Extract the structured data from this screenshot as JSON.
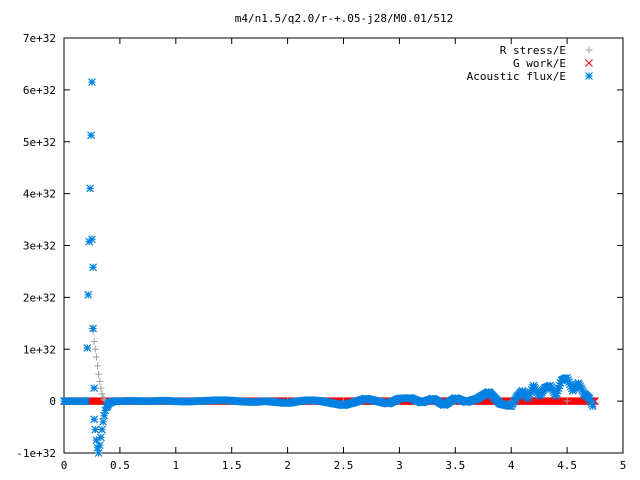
{
  "chart_data": {
    "type": "scatter",
    "title": "m4/n1.5/q2.0/r-+.05-j28/M0.01/512",
    "xlabel": "",
    "ylabel": "",
    "xlim": [
      0,
      5
    ],
    "ylim": [
      -1e+32,
      7e+32
    ],
    "x_ticks": [
      0,
      0.5,
      1,
      1.5,
      2,
      2.5,
      3,
      3.5,
      4,
      4.5,
      5
    ],
    "x_tick_labels": [
      "0",
      "0.5",
      "1",
      "1.5",
      "2",
      "2.5",
      "3",
      "3.5",
      "4",
      "4.5",
      "5"
    ],
    "y_ticks": [
      -1e+32,
      0,
      1e+32,
      2e+32,
      3e+32,
      4e+32,
      5e+32,
      6e+32,
      7e+32
    ],
    "y_tick_labels": [
      "-1e+32",
      "0",
      "1e+32",
      "2e+32",
      "3e+32",
      "4e+32",
      "5e+32",
      "6e+32",
      "7e+32"
    ],
    "grid": false,
    "legend_position": "top-right",
    "colors": {
      "r_stress": "#a0a0a0",
      "g_work": "#ff0000",
      "acoustic_flux": "#0080e0"
    },
    "series": [
      {
        "name": "R stress/E",
        "marker": "plus",
        "x": [
          0.25,
          0.26,
          0.27,
          0.28,
          0.29,
          0.3,
          0.31,
          0.32,
          0.33,
          0.34,
          0.35,
          0.36,
          0.37,
          0.4,
          0.45,
          0.5,
          0.6,
          0.8,
          1.0,
          1.5,
          2.0,
          2.5,
          3.0,
          3.5,
          4.0,
          4.5,
          4.72
        ],
        "y": [
          1.4e+32,
          1.35e+32,
          1.15e+32,
          1e+32,
          8.5e+31,
          6.8e+31,
          5.2e+31,
          3.8e+31,
          2.5e+31,
          1.4e+31,
          7e+30,
          3e+30,
          1e+30,
          0.0,
          0.0,
          0.0,
          0.0,
          0.0,
          0.0,
          0.0,
          0.0,
          0.0,
          0.0,
          0.0,
          0.0,
          0.0,
          0.0
        ]
      },
      {
        "name": "G work/E",
        "marker": "cross",
        "x_range": [
          0.0,
          4.75
        ],
        "y_constant": 0
      },
      {
        "name": "Acoustic flux/E",
        "marker": "star",
        "x": [
          0.0,
          0.05,
          0.1,
          0.15,
          0.2,
          0.25,
          0.25,
          0.26,
          0.26,
          0.27,
          0.27,
          0.28,
          0.29,
          0.3,
          0.31,
          0.32,
          0.33,
          0.34,
          0.35,
          0.36,
          0.37,
          0.38,
          0.4,
          0.42,
          0.45,
          0.5,
          0.6,
          0.7,
          0.8,
          0.9,
          1.0,
          1.1,
          1.2,
          1.3,
          1.4,
          1.5,
          1.6,
          1.7,
          1.8,
          1.9,
          2.0,
          2.1,
          2.2,
          2.3,
          2.4,
          2.5,
          2.6,
          2.7,
          2.8,
          2.9,
          3.0,
          3.1,
          3.2,
          3.3,
          3.4,
          3.5,
          3.6,
          3.7,
          3.8,
          3.9,
          4.0,
          4.05,
          4.1,
          4.15,
          4.2,
          4.25,
          4.3,
          4.35,
          4.4,
          4.45,
          4.5,
          4.55,
          4.6,
          4.65,
          4.7,
          4.73
        ],
        "y": [
          0.0,
          0.0,
          0.0,
          0.0,
          0.0,
          6.15e+32,
          3.12e+32,
          2.58e+32,
          1.4e+32,
          2.5e+31,
          -3.5e+31,
          -5.5e+31,
          -7.5e+31,
          -9e+31,
          -1e+32,
          -8.5e+31,
          -7e+31,
          -5.5e+31,
          -4e+31,
          -2.8e+31,
          -1.8e+31,
          -1.2e+31,
          -5e+30,
          -2e+30,
          0.0,
          0.0,
          5e+29,
          0.0,
          0.0,
          1e+30,
          -5e+29,
          -1e+30,
          0.0,
          1e+30,
          2e+30,
          1e+30,
          -1e+30,
          -2e+30,
          0.0,
          -2e+30,
          -4e+30,
          0.0,
          2e+30,
          0.0,
          -4e+30,
          -8e+30,
          -2e+30,
          5e+30,
          0.0,
          -5e+30,
          5e+30,
          6e+30,
          -3e+30,
          5e+30,
          -8e+30,
          6e+30,
          -2e+30,
          5e+30,
          1.8e+31,
          -5e+30,
          -1e+31,
          8e+30,
          2e+31,
          5e+30,
          3e+31,
          1e+31,
          2.5e+31,
          3e+31,
          1e+31,
          4e+31,
          4.5e+31,
          2e+31,
          3.5e+31,
          1.5e+31,
          5e+30,
          -1e+31
        ]
      }
    ]
  }
}
